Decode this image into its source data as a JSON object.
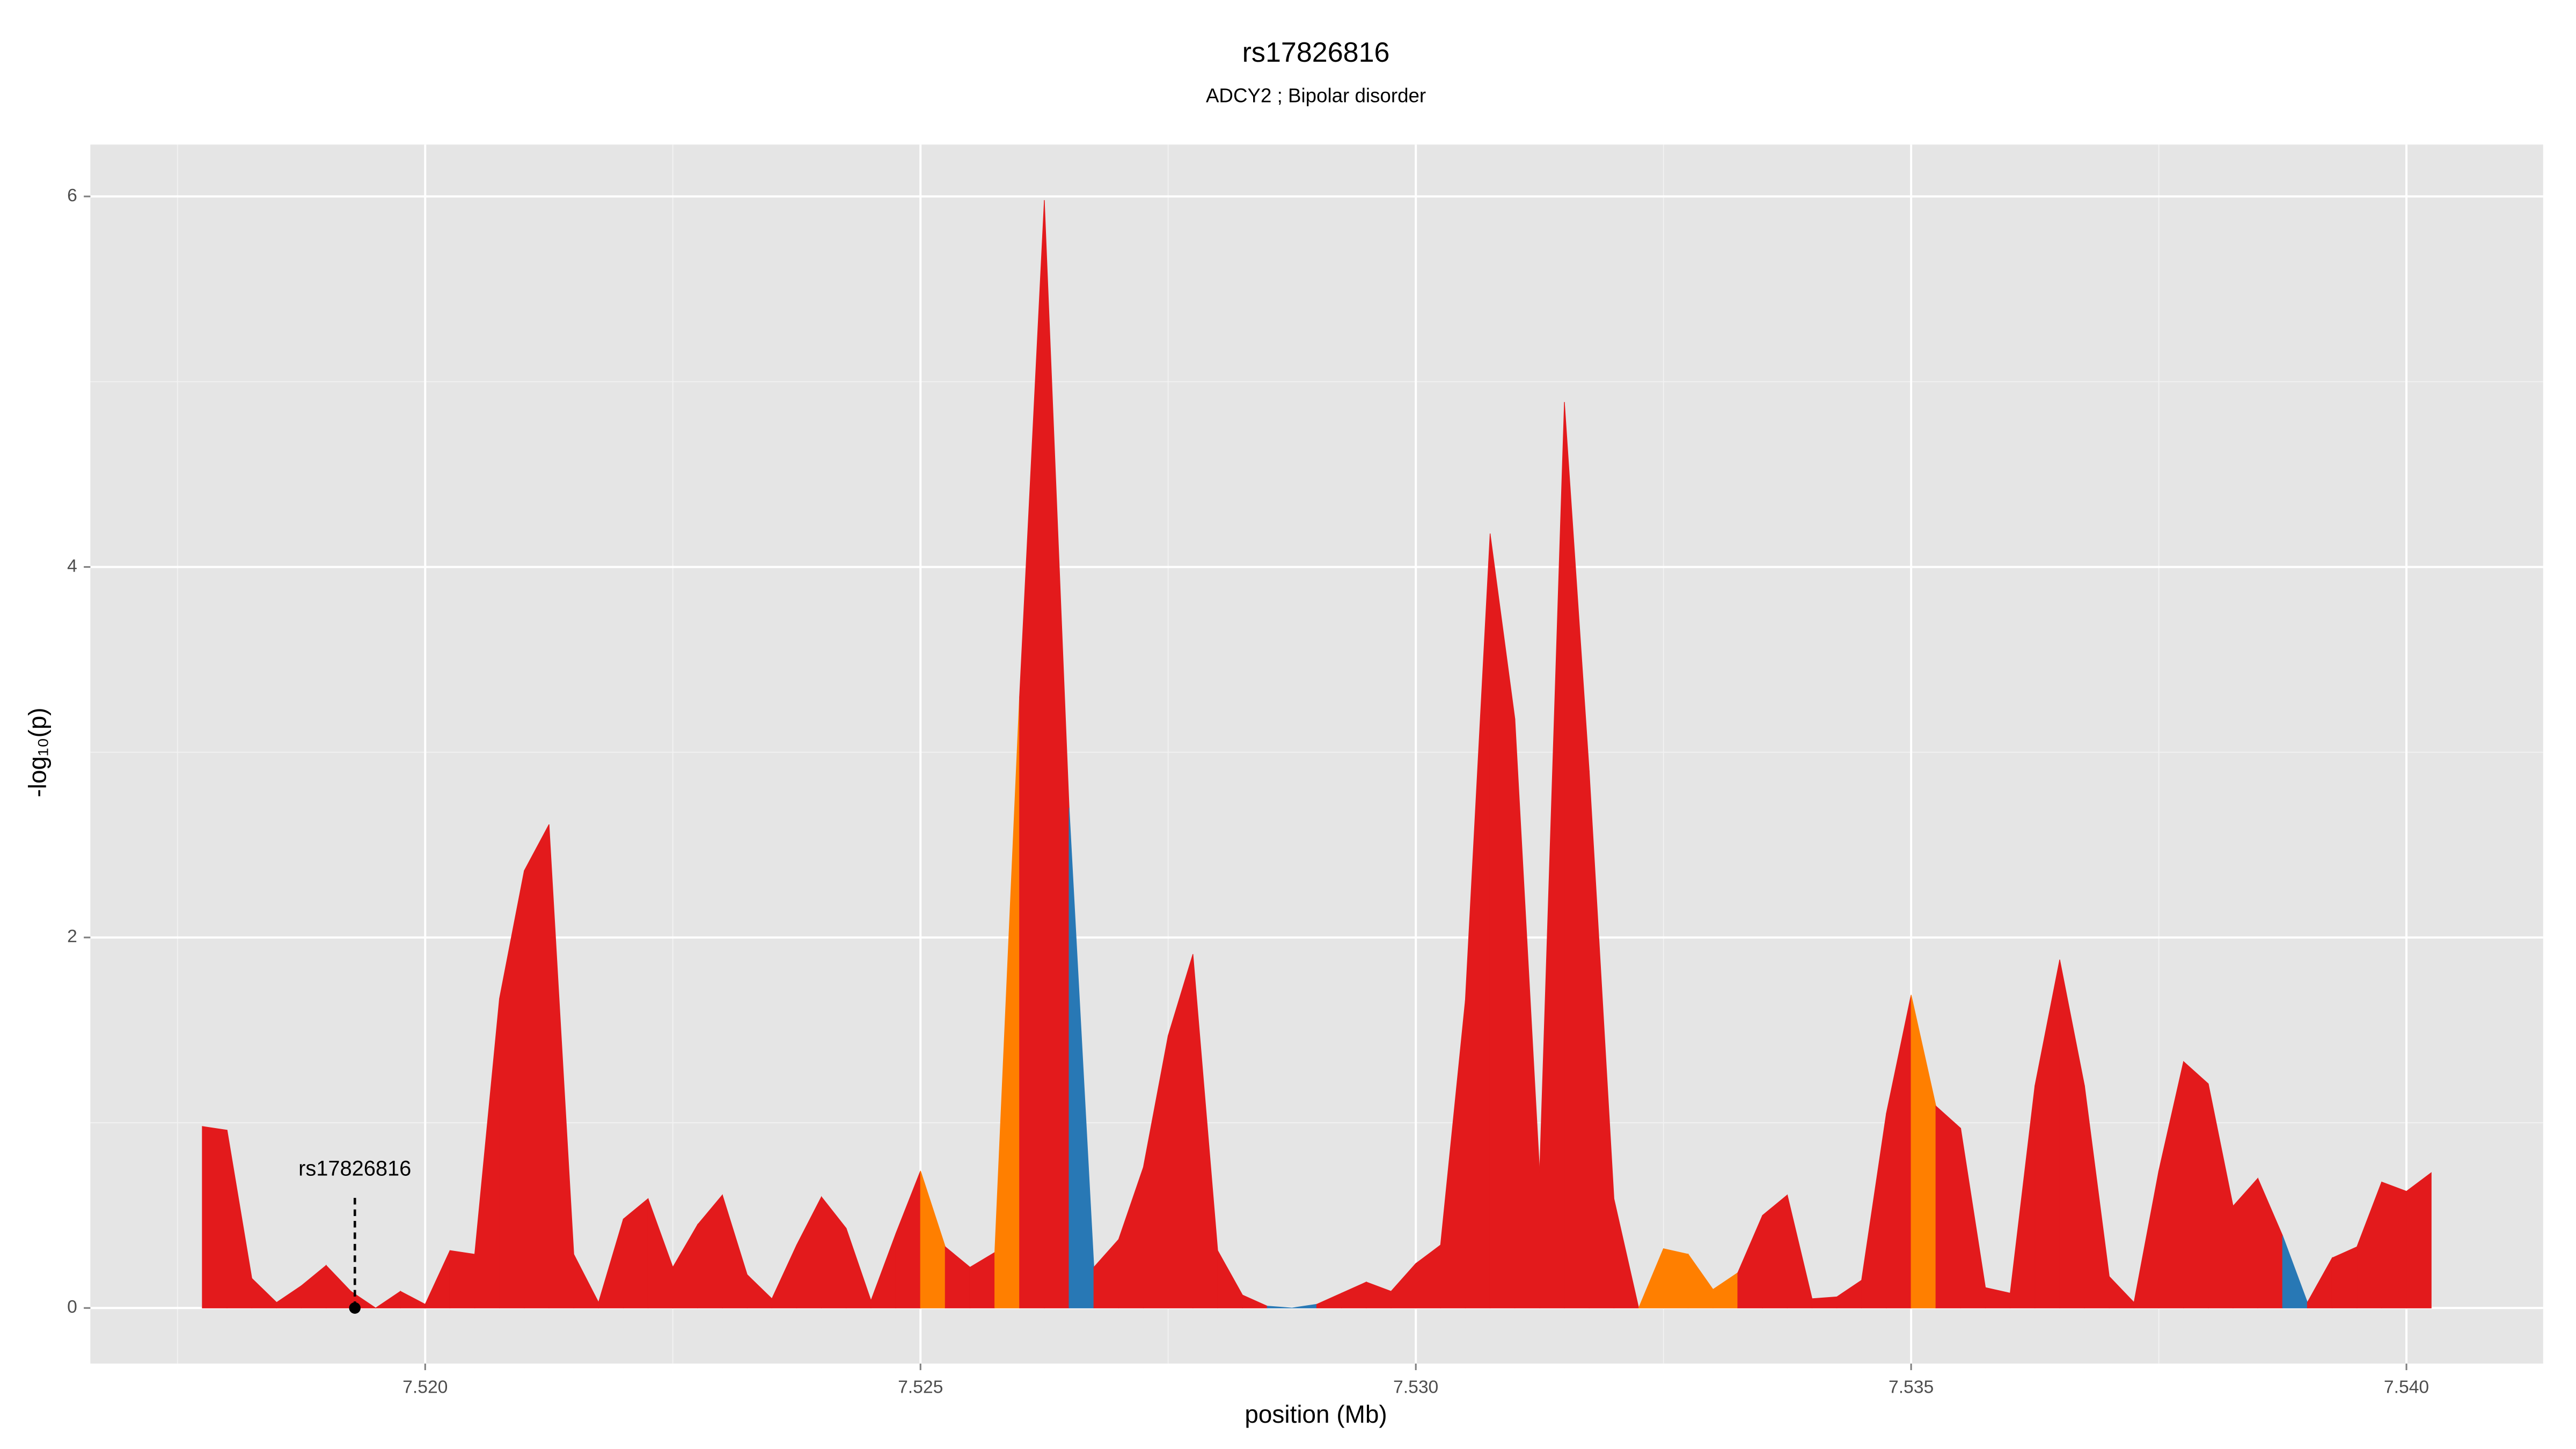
{
  "chart_data": {
    "type": "area",
    "title": "rs17826816",
    "subtitle": "ADCY2 ; Bipolar disorder",
    "x_label": "position (Mb)",
    "y_label": "-log₁₀(p)",
    "x": [
      7.51775,
      7.518,
      7.51825,
      7.5185,
      7.51875,
      7.519,
      7.51925,
      7.5195,
      7.51975,
      7.52,
      7.52025,
      7.5205,
      7.52075,
      7.521,
      7.52125,
      7.5215,
      7.52175,
      7.522,
      7.52225,
      7.5225,
      7.52275,
      7.523,
      7.52325,
      7.5235,
      7.52375,
      7.524,
      7.52425,
      7.5245,
      7.52475,
      7.525,
      7.52525,
      7.5255,
      7.52575,
      7.526,
      7.52625,
      7.5265,
      7.52675,
      7.527,
      7.52725,
      7.5275,
      7.52775,
      7.528,
      7.52825,
      7.5285,
      7.52875,
      7.529,
      7.52925,
      7.5295,
      7.52975,
      7.53,
      7.53025,
      7.5305,
      7.53075,
      7.531,
      7.53125,
      7.5315,
      7.53175,
      7.532,
      7.53225,
      7.5325,
      7.53275,
      7.533,
      7.53325,
      7.5335,
      7.53375,
      7.534,
      7.53425,
      7.5345,
      7.53475,
      7.535,
      7.53525,
      7.5355,
      7.53575,
      7.536,
      7.53625,
      7.5365,
      7.53675,
      7.537,
      7.53725,
      7.5375,
      7.53775,
      7.538,
      7.53825,
      7.5385,
      7.53875,
      7.539,
      7.53925,
      7.5395,
      7.53975,
      7.54,
      7.54025
    ],
    "values": [
      0.98,
      0.96,
      0.16,
      0.03,
      0.12,
      0.23,
      0.09,
      0.0,
      0.09,
      0.02,
      0.31,
      0.29,
      1.67,
      2.36,
      2.61,
      0.29,
      0.03,
      0.48,
      0.59,
      0.22,
      0.45,
      0.61,
      0.18,
      0.05,
      0.34,
      0.6,
      0.43,
      0.04,
      0.4,
      0.74,
      0.33,
      0.22,
      0.3,
      3.3,
      5.98,
      2.7,
      0.22,
      0.37,
      0.76,
      1.47,
      1.91,
      0.31,
      0.07,
      0.01,
      0.0,
      0.02,
      0.08,
      0.14,
      0.09,
      0.24,
      0.34,
      1.66,
      4.18,
      3.18,
      0.73,
      4.89,
      2.9,
      0.59,
      0.0,
      0.32,
      0.29,
      0.1,
      0.19,
      0.5,
      0.61,
      0.05,
      0.06,
      0.15,
      1.05,
      1.69,
      1.09,
      0.97,
      0.11,
      0.08,
      1.2,
      1.88,
      1.2,
      0.17,
      0.03,
      0.74,
      1.33,
      1.21,
      0.55,
      0.7,
      0.39,
      0.03,
      0.27,
      0.33,
      0.68,
      0.63,
      0.73
    ],
    "colors": [
      "#e31a1c",
      "#e31a1c",
      "#e31a1c",
      "#e31a1c",
      "#e31a1c",
      "#e31a1c",
      "#e31a1c",
      "#e31a1c",
      "#e31a1c",
      "#e31a1c",
      "#e31a1c",
      "#e31a1c",
      "#e31a1c",
      "#e31a1c",
      "#e31a1c",
      "#e31a1c",
      "#e31a1c",
      "#e31a1c",
      "#e31a1c",
      "#e31a1c",
      "#e31a1c",
      "#e31a1c",
      "#e31a1c",
      "#e31a1c",
      "#e31a1c",
      "#e31a1c",
      "#e31a1c",
      "#e31a1c",
      "#e31a1c",
      "#ff7f00",
      "#e31a1c",
      "#e31a1c",
      "#ff7f00",
      "#e31a1c",
      "#e31a1c",
      "#2878b5",
      "#e31a1c",
      "#e31a1c",
      "#e31a1c",
      "#e31a1c",
      "#e31a1c",
      "#e31a1c",
      "#e31a1c",
      "#2878b5",
      "#2878b5",
      "#e31a1c",
      "#e31a1c",
      "#e31a1c",
      "#e31a1c",
      "#e31a1c",
      "#e31a1c",
      "#e31a1c",
      "#e31a1c",
      "#e31a1c",
      "#e31a1c",
      "#e31a1c",
      "#e31a1c",
      "#e31a1c",
      "#ff7f00",
      "#ff7f00",
      "#ff7f00",
      "#ff7f00",
      "#e31a1c",
      "#e31a1c",
      "#e31a1c",
      "#e31a1c",
      "#e31a1c",
      "#e31a1c",
      "#e31a1c",
      "#ff7f00",
      "#e31a1c",
      "#e31a1c",
      "#e31a1c",
      "#e31a1c",
      "#e31a1c",
      "#e31a1c",
      "#e31a1c",
      "#e31a1c",
      "#e31a1c",
      "#e31a1c",
      "#e31a1c",
      "#e31a1c",
      "#e31a1c",
      "#e31a1c",
      "#2878b5",
      "#e31a1c",
      "#e31a1c",
      "#e31a1c",
      "#e31a1c",
      "#e31a1c",
      "#e31a1c"
    ],
    "annotation": {
      "label": "rs17826816",
      "x": 7.51929,
      "y": 0
    },
    "xlim": [
      7.51662,
      7.54138
    ],
    "ylim": [
      -0.3,
      6.28
    ],
    "xticks": [
      {
        "value": 7.52,
        "label": "7.520"
      },
      {
        "value": 7.525,
        "label": "7.525"
      },
      {
        "value": 7.53,
        "label": "7.530"
      },
      {
        "value": 7.535,
        "label": "7.535"
      },
      {
        "value": 7.54,
        "label": "7.540"
      }
    ],
    "yticks": [
      0,
      2,
      4,
      6
    ],
    "grid": true
  }
}
